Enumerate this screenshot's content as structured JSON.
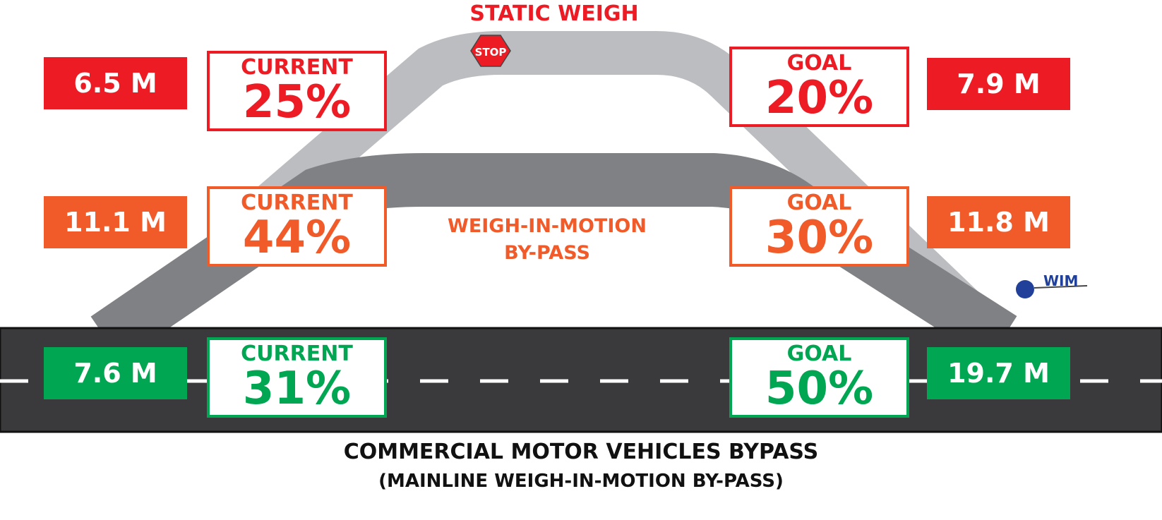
{
  "colors": {
    "static": "#ed1c24",
    "wim_bypass": "#f15a29",
    "mainline": "#00a651",
    "wim_marker": "#21409a",
    "road": "#3a3a3c",
    "static_ramp": "#bcbdc0",
    "wim_ramp": "#808184"
  },
  "static_weigh": {
    "title": "STATIC WEIGH",
    "stop_sign": "STOP",
    "current_value": "6.5 M",
    "current_label": "CURRENT",
    "current_pct": "25%",
    "goal_label": "GOAL",
    "goal_pct": "20%",
    "goal_value": "7.9 M"
  },
  "wim_bypass": {
    "title_line1": "WEIGH-IN-MOTION",
    "title_line2": "BY-PASS",
    "current_value": "11.1 M",
    "current_label": "CURRENT",
    "current_pct": "44%",
    "goal_label": "GOAL",
    "goal_pct": "30%",
    "goal_value": "11.8 M"
  },
  "mainline": {
    "current_value": "7.6 M",
    "current_label": "CURRENT",
    "current_pct": "31%",
    "goal_label": "GOAL",
    "goal_pct": "50%",
    "goal_value": "19.7 M"
  },
  "wim_marker": {
    "label": "WIM"
  },
  "footer": {
    "line1": "COMMERCIAL MOTOR VEHICLES BYPASS",
    "line2": "(MAINLINE WEIGH-IN-MOTION BY-PASS)"
  }
}
